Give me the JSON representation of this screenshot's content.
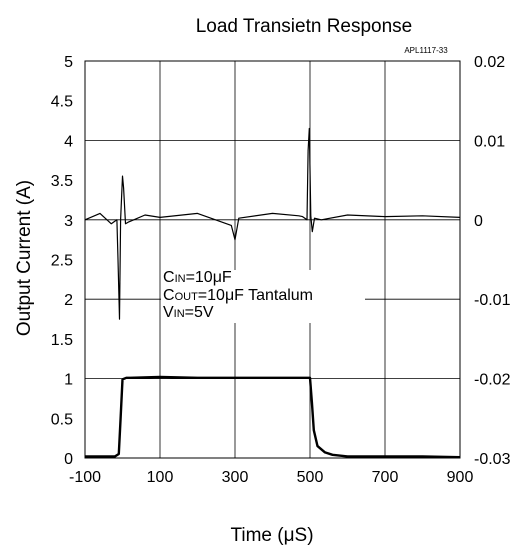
{
  "chart_data": {
    "type": "line",
    "title": "Load Transietn Response",
    "code": "APL1117-33",
    "xlabel": "Time (μS)",
    "ylabel": "Output Current (A)",
    "xlim": [
      -100,
      900
    ],
    "ylim": [
      0,
      5
    ],
    "y2lim": [
      -0.03,
      0.02
    ],
    "xticks": [
      "-100",
      "100",
      "300",
      "500",
      "700",
      "900"
    ],
    "xtick_values": [
      -100,
      100,
      300,
      500,
      700,
      900
    ],
    "yticks": [
      "0",
      "0.5",
      "1",
      "1.5",
      "2",
      "2.5",
      "3",
      "3.5",
      "4",
      "4.5",
      "5"
    ],
    "ytick_values": [
      0,
      0.5,
      1,
      1.5,
      2,
      2.5,
      3,
      3.5,
      4,
      4.5,
      5
    ],
    "y2ticks": [
      "-0.03",
      "-0.02",
      "-0.01",
      "0",
      "0.01",
      "0.02"
    ],
    "y2tick_values": [
      -0.03,
      -0.02,
      -0.01,
      0,
      0.01,
      0.02
    ],
    "grid": true,
    "series": [
      {
        "color": "#000000",
        "axis": "left",
        "x": [
          -100,
          -20,
          -10,
          -5,
          0,
          10,
          20,
          100,
          200,
          300,
          400,
          480,
          495,
          500,
          505,
          510,
          520,
          540,
          560,
          600,
          700,
          800,
          900
        ],
        "values": [
          0.02,
          0.02,
          0.05,
          0.5,
          0.99,
          1.01,
          1.01,
          1.02,
          1.01,
          1.01,
          1.01,
          1.01,
          1.01,
          1.01,
          0.7,
          0.35,
          0.15,
          0.07,
          0.04,
          0.02,
          0.02,
          0.02,
          0.01
        ]
      },
      {
        "color": "#000000",
        "axis": "right",
        "x": [
          -100,
          -60,
          -30,
          -15,
          -12,
          -8,
          -5,
          0,
          3,
          8,
          15,
          30,
          60,
          100,
          200,
          290,
          300,
          310,
          400,
          470,
          480,
          492,
          495,
          498,
          502,
          506,
          512,
          530,
          600,
          700,
          800,
          900
        ],
        "values": [
          0,
          0.0008,
          -0.0005,
          0,
          -0.005,
          -0.0125,
          0,
          0.0055,
          0.004,
          -0.0005,
          -0.0003,
          0,
          0.0006,
          0.0003,
          0.0008,
          -0.0007,
          -0.0025,
          0.0002,
          0.0008,
          0.0005,
          0.0004,
          0,
          0.0087,
          0.0115,
          0.0005,
          -0.0015,
          0.0002,
          0,
          0.0006,
          0.0004,
          0.0005,
          0.0003
        ]
      }
    ],
    "annotation": {
      "line1": {
        "main": "C",
        "sub": "IN",
        "rest": "=10μF"
      },
      "line2": {
        "main": "C",
        "sub": "OUT",
        "rest": "=10μF Tantalum"
      },
      "line3": {
        "main": "V",
        "sub": "IN",
        "rest": "=5V"
      }
    }
  }
}
